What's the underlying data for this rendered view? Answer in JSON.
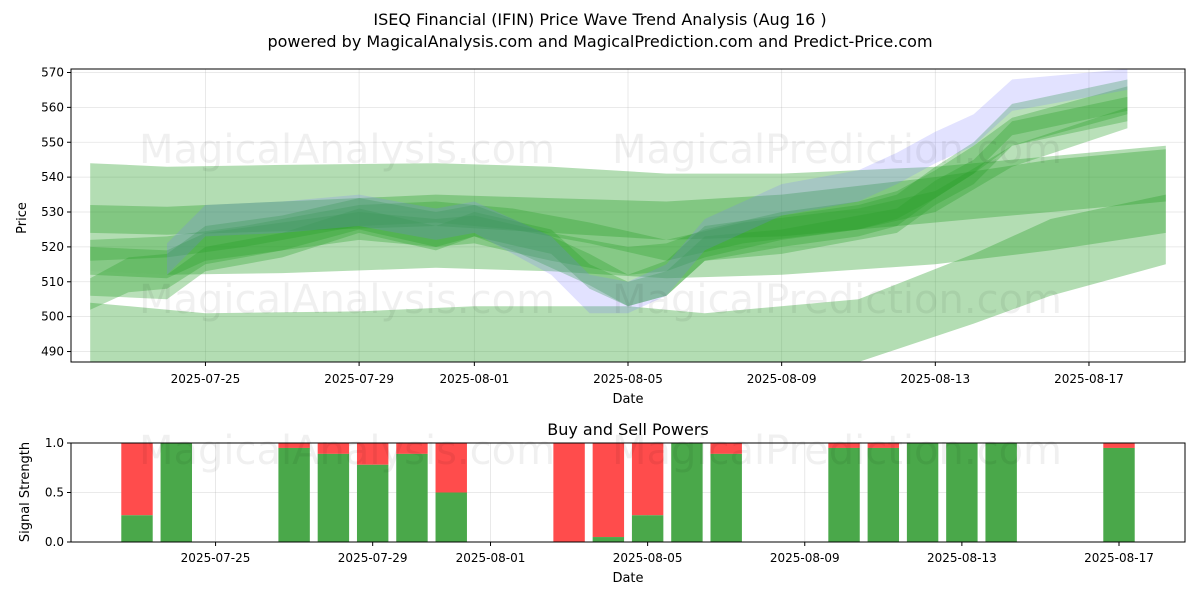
{
  "header": {
    "title": "ISEQ Financial (IFIN) Price Wave Trend Analysis (Aug 16 )",
    "subtitle": "powered by MagicalAnalysis.com and MagicalPrediction.com and Predict-Price.com"
  },
  "watermarks": [
    "MagicalAnalysis.com",
    "MagicalPrediction.com"
  ],
  "colors": {
    "band_green": "#2ca02c",
    "band_blue": "#7b7bff",
    "buy": "#4aa84a",
    "sell": "#ff4c4c"
  },
  "chart_data": [
    {
      "type": "area",
      "ylabel": "Price",
      "xlabel": "Date",
      "xlim": [
        "2025-07-21T12:00",
        "2025-08-19T12:00"
      ],
      "ylim": [
        487,
        571
      ],
      "yticks": [
        490,
        500,
        510,
        520,
        530,
        540,
        550,
        560,
        570
      ],
      "xtick_labels": [
        "2025-07-25",
        "2025-07-29",
        "2025-08-01",
        "2025-08-05",
        "2025-08-09",
        "2025-08-13",
        "2025-08-17"
      ],
      "xtick_dates": [
        "2025-07-25",
        "2025-07-29",
        "2025-08-01",
        "2025-08-05",
        "2025-08-09",
        "2025-08-13",
        "2025-08-17"
      ],
      "grid": true,
      "series": [
        {
          "kind": "wide",
          "x": [
            "2025-07-22",
            "2025-07-24",
            "2025-07-27",
            "2025-07-31",
            "2025-08-03",
            "2025-08-06",
            "2025-08-09",
            "2025-08-13",
            "2025-08-16",
            "2025-08-19"
          ],
          "upper": [
            544,
            543,
            543.5,
            544,
            543,
            541,
            541,
            543,
            546,
            549
          ],
          "lower": [
            513,
            512,
            512.5,
            514,
            513,
            511,
            512,
            515,
            519,
            524
          ]
        },
        {
          "kind": "wide",
          "x": [
            "2025-07-22",
            "2025-07-24",
            "2025-07-27",
            "2025-07-31",
            "2025-08-03",
            "2025-08-06",
            "2025-08-09",
            "2025-08-13",
            "2025-08-16",
            "2025-08-19"
          ],
          "upper": [
            532,
            531.5,
            533,
            535,
            534,
            533,
            535,
            540,
            545,
            548
          ],
          "lower": [
            524,
            523.5,
            524.5,
            526,
            524,
            522,
            523,
            527,
            530,
            533
          ]
        },
        {
          "kind": "low",
          "x": [
            "2025-07-22",
            "2025-07-25",
            "2025-07-29",
            "2025-08-01",
            "2025-08-05",
            "2025-08-07",
            "2025-08-11",
            "2025-08-14",
            "2025-08-16",
            "2025-08-19"
          ],
          "upper": [
            504,
            501,
            501.5,
            503,
            503,
            501,
            505,
            518,
            528,
            535
          ],
          "lower": [
            487,
            487,
            487,
            487,
            487,
            487,
            487,
            498,
            506,
            515
          ]
        },
        {
          "kind": "wave",
          "x": [
            "2025-07-22",
            "2025-07-23",
            "2025-07-24",
            "2025-07-25",
            "2025-07-27",
            "2025-07-29",
            "2025-07-31",
            "2025-08-01",
            "2025-08-02",
            "2025-08-04",
            "2025-08-05",
            "2025-08-06",
            "2025-08-07",
            "2025-08-09",
            "2025-08-11",
            "2025-08-12",
            "2025-08-13",
            "2025-08-14",
            "2025-08-15",
            "2025-08-18"
          ],
          "upper": [
            511,
            517,
            518,
            526,
            529,
            534,
            530,
            532,
            528,
            518,
            512,
            516,
            526,
            529,
            532,
            535,
            543,
            550,
            561,
            568
          ],
          "lower": [
            502,
            507,
            508,
            515,
            519,
            525,
            520,
            523,
            519,
            509,
            503,
            506,
            516,
            520,
            523,
            526,
            534,
            541,
            552,
            559
          ]
        },
        {
          "kind": "wave",
          "x": [
            "2025-07-22",
            "2025-07-24",
            "2025-07-25",
            "2025-07-27",
            "2025-07-29",
            "2025-07-31",
            "2025-08-01",
            "2025-08-03",
            "2025-08-05",
            "2025-08-06",
            "2025-08-07",
            "2025-08-09",
            "2025-08-11",
            "2025-08-12",
            "2025-08-13",
            "2025-08-14",
            "2025-08-15",
            "2025-08-18"
          ],
          "upper": [
            520,
            519,
            524,
            527,
            530,
            528,
            529,
            524,
            520,
            521,
            525,
            530,
            533,
            536,
            542,
            549,
            557,
            566
          ],
          "lower": [
            512,
            511,
            516,
            519,
            522,
            520,
            521,
            516,
            512,
            513,
            517,
            522,
            525,
            528,
            534,
            541,
            549,
            558
          ]
        },
        {
          "kind": "wave",
          "x": [
            "2025-07-22",
            "2025-07-24",
            "2025-07-25",
            "2025-07-27",
            "2025-07-29",
            "2025-07-31",
            "2025-08-01",
            "2025-08-03",
            "2025-08-04",
            "2025-08-05",
            "2025-08-06",
            "2025-08-07",
            "2025-08-09",
            "2025-08-11",
            "2025-08-12",
            "2025-08-13",
            "2025-08-14",
            "2025-08-15",
            "2025-08-18"
          ],
          "upper": [
            513,
            512,
            520,
            524,
            531,
            526,
            530,
            525,
            515,
            510,
            513,
            523,
            525,
            529,
            531,
            539,
            545,
            556,
            563
          ],
          "lower": [
            506,
            505,
            513,
            517,
            524,
            519,
            523,
            518,
            508,
            503,
            506,
            516,
            518,
            522,
            524,
            532,
            538,
            549,
            556
          ]
        },
        {
          "kind": "wave",
          "x": [
            "2025-07-22",
            "2025-07-24",
            "2025-07-26",
            "2025-07-29",
            "2025-07-31",
            "2025-08-02",
            "2025-08-04",
            "2025-08-06",
            "2025-08-08",
            "2025-08-11",
            "2025-08-13",
            "2025-08-15",
            "2025-08-18"
          ],
          "upper": [
            522,
            523,
            526,
            532,
            533,
            531,
            527,
            522,
            527,
            531,
            536,
            549,
            560
          ],
          "lower": [
            516,
            517,
            520,
            526,
            527,
            525,
            521,
            516,
            521,
            525,
            530,
            543,
            554
          ]
        },
        {
          "kind": "blue",
          "x": [
            "2025-07-24",
            "2025-07-25",
            "2025-07-27",
            "2025-07-29",
            "2025-07-31",
            "2025-08-01",
            "2025-08-03",
            "2025-08-04",
            "2025-08-05",
            "2025-08-06",
            "2025-08-07",
            "2025-08-09",
            "2025-08-11",
            "2025-08-12",
            "2025-08-13",
            "2025-08-14",
            "2025-08-15",
            "2025-08-18"
          ],
          "upper": [
            521,
            532,
            533,
            535,
            531,
            533,
            523,
            512,
            510,
            515,
            528,
            538,
            542,
            547,
            553,
            558,
            568,
            571
          ],
          "lower": [
            512,
            523,
            524,
            526,
            522,
            524,
            512,
            501,
            501,
            506,
            519,
            529,
            533,
            538,
            544,
            549,
            559,
            565
          ]
        }
      ]
    },
    {
      "type": "bar",
      "title": "Buy and Sell Powers",
      "ylabel": "Signal Strength",
      "xlabel": "Date",
      "ylim": [
        0,
        1
      ],
      "yticks": [
        "0.0",
        "0.5",
        "1.0"
      ],
      "xtick_labels": [
        "2025-07-25",
        "2025-07-29",
        "2025-08-01",
        "2025-08-05",
        "2025-08-09",
        "2025-08-13",
        "2025-08-17"
      ],
      "xtick_dates": [
        "2025-07-25",
        "2025-07-29",
        "2025-08-01",
        "2025-08-05",
        "2025-08-09",
        "2025-08-13",
        "2025-08-17"
      ],
      "bars": [
        {
          "date": "2025-07-23",
          "buy": 0.27
        },
        {
          "date": "2025-07-24",
          "buy": 1.0
        },
        {
          "date": "2025-07-27",
          "buy": 0.95
        },
        {
          "date": "2025-07-28",
          "buy": 0.89
        },
        {
          "date": "2025-07-29",
          "buy": 0.78
        },
        {
          "date": "2025-07-30",
          "buy": 0.89
        },
        {
          "date": "2025-07-31",
          "buy": 0.5
        },
        {
          "date": "2025-08-03",
          "buy": 0.0
        },
        {
          "date": "2025-08-04",
          "buy": 0.05
        },
        {
          "date": "2025-08-05",
          "buy": 0.27
        },
        {
          "date": "2025-08-06",
          "buy": 1.0
        },
        {
          "date": "2025-08-07",
          "buy": 0.89
        },
        {
          "date": "2025-08-10",
          "buy": 0.95
        },
        {
          "date": "2025-08-11",
          "buy": 0.95
        },
        {
          "date": "2025-08-12",
          "buy": 1.0
        },
        {
          "date": "2025-08-13",
          "buy": 1.0
        },
        {
          "date": "2025-08-14",
          "buy": 1.0
        },
        {
          "date": "2025-08-17",
          "buy": 0.95
        }
      ]
    }
  ]
}
